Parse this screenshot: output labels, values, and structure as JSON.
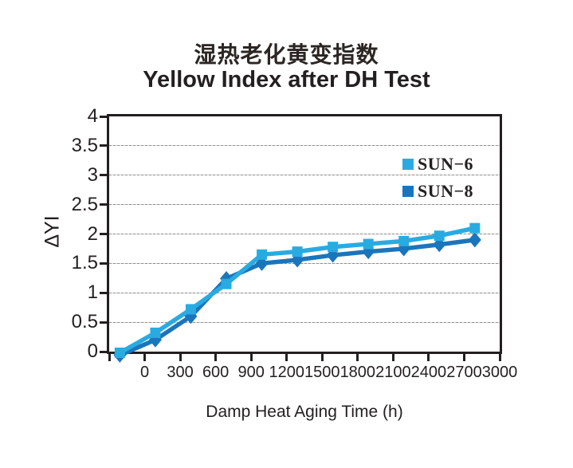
{
  "chart": {
    "title_zh": "湿热老化黄变指数",
    "title_en": "Yellow Index after DH Test",
    "xlabel": "Damp Heat Aging Time (h)",
    "ylabel": "ΔYI"
  },
  "chart_data": {
    "type": "line",
    "title": "湿热老化黄变指数 / Yellow Index after DH Test",
    "xlabel": "Damp Heat Aging Time (h)",
    "ylabel": "ΔYI",
    "categories": [
      0,
      300,
      600,
      900,
      1200,
      1500,
      1800,
      2100,
      2400,
      2700,
      3000
    ],
    "x_tick_labels": [
      "0",
      "300",
      "600",
      "900",
      "1200",
      "1500",
      "1800",
      "2100",
      "2400",
      "2700",
      "3000"
    ],
    "y_tick_labels": [
      "0",
      "0.5",
      "1",
      "1.5",
      "2",
      "2.5",
      "3",
      "3.5",
      "4"
    ],
    "ylim": [
      0,
      4
    ],
    "y_step": 0.5,
    "grid": "horizontal-dotted",
    "legend_position": "inside-top-right",
    "frame_color": "#231f20",
    "series": [
      {
        "name": "SUN−6",
        "color": "#29abe2",
        "marker": "square",
        "values": [
          -0.02,
          0.32,
          0.72,
          1.15,
          1.65,
          1.7,
          1.78,
          1.83,
          1.88,
          1.97,
          2.1
        ]
      },
      {
        "name": "SUN−8",
        "color": "#1b75bc",
        "marker": "diamond",
        "values": [
          -0.06,
          0.2,
          0.6,
          1.24,
          1.5,
          1.56,
          1.64,
          1.7,
          1.75,
          1.82,
          1.9
        ]
      }
    ]
  }
}
